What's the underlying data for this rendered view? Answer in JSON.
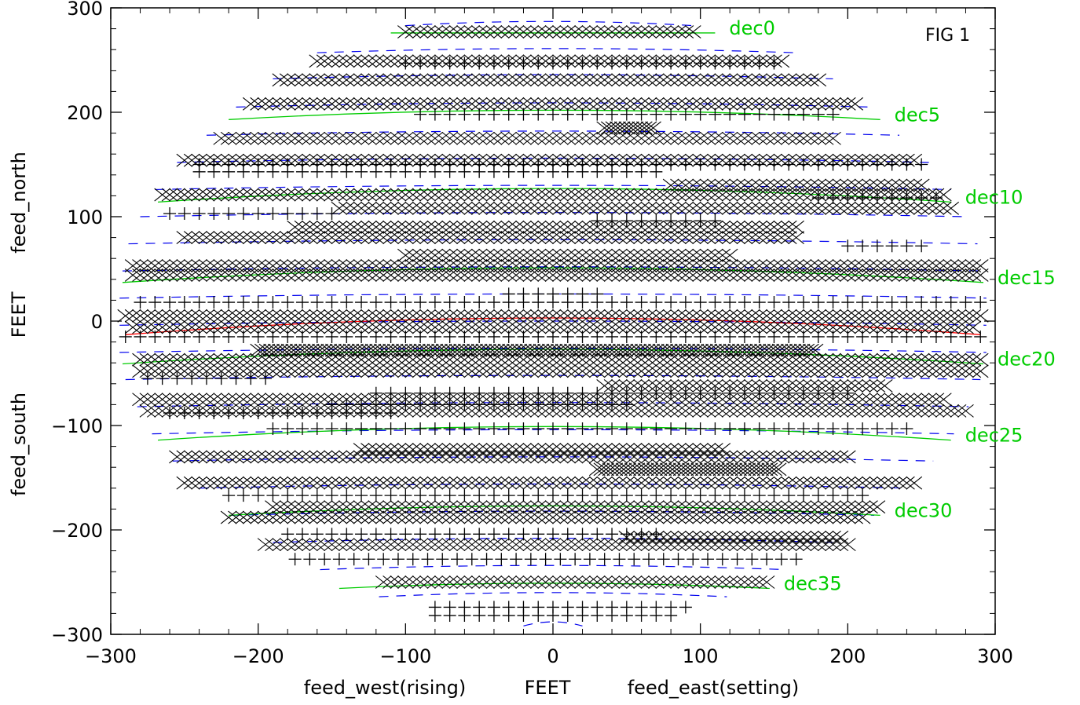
{
  "chart_data": {
    "type": "scatter",
    "figure_label": "FIG   1",
    "xlim": [
      -300,
      300
    ],
    "ylim": [
      -300,
      300
    ],
    "x_ticks": [
      -300,
      -200,
      -100,
      0,
      100,
      200,
      300
    ],
    "x_tick_labels": [
      "−300",
      "−200",
      "−100",
      "0",
      "100",
      "200",
      "300"
    ],
    "y_ticks": [
      -300,
      -200,
      -100,
      0,
      100,
      200,
      300
    ],
    "y_tick_labels": [
      "−300",
      "−200",
      "−100",
      "0",
      "100",
      "200",
      "300"
    ],
    "xlabel_parts": [
      "feed_west(rising)",
      "FEET",
      "feed_east(setting)"
    ],
    "ylabel_parts": [
      "feed_south",
      "FEET",
      "feed_north"
    ],
    "colors": {
      "markers": "#000000",
      "dec_curve": "#00cc00",
      "zenith_curve": "#ff0000",
      "track_dash": "#0000ee"
    },
    "dec_curves": [
      {
        "label": "dec0",
        "x0": -110,
        "x1": 110,
        "y0": 276,
        "sag": 0
      },
      {
        "label": "dec5",
        "x0": -220,
        "x1": 222,
        "y0": 193,
        "sag": 9
      },
      {
        "label": "dec10",
        "x0": -268,
        "x1": 270,
        "y0": 114,
        "sag": 13
      },
      {
        "label": "dec15",
        "x0": -292,
        "x1": 292,
        "y0": 37,
        "sag": 14
      },
      {
        "label": "dec20",
        "x0": -292,
        "x1": 292,
        "y0": -41,
        "sag": 14
      },
      {
        "label": "dec25",
        "x0": -268,
        "x1": 270,
        "y0": -114,
        "sag": 13
      },
      {
        "label": "dec30",
        "x0": -220,
        "x1": 222,
        "y0": -186,
        "sag": 9
      },
      {
        "label": "dec35",
        "x0": -145,
        "x1": 147,
        "y0": -256,
        "sag": 5
      }
    ],
    "zenith_curve": {
      "x0": -290,
      "x1": 290,
      "y0": -13,
      "sag": 16
    },
    "track_dashes": [
      {
        "y": 283,
        "x0": -100,
        "x1": 95
      },
      {
        "y": 257,
        "x0": -160,
        "x1": 165
      },
      {
        "y": 232,
        "x0": -190,
        "x1": 190
      },
      {
        "y": 205,
        "x0": -215,
        "x1": 215
      },
      {
        "y": 178,
        "x0": -235,
        "x1": 235
      },
      {
        "y": 152,
        "x0": -255,
        "x1": 255
      },
      {
        "y": 126,
        "x0": -270,
        "x1": 270
      },
      {
        "y": 100,
        "x0": -280,
        "x1": 280
      },
      {
        "y": 74,
        "x0": -288,
        "x1": 288
      },
      {
        "y": 48,
        "x0": -292,
        "x1": 292
      },
      {
        "y": 22,
        "x0": -294,
        "x1": 294
      },
      {
        "y": -4,
        "x0": -294,
        "x1": 294
      },
      {
        "y": -30,
        "x0": -294,
        "x1": 294
      },
      {
        "y": -56,
        "x0": -290,
        "x1": 290
      },
      {
        "y": -82,
        "x0": -282,
        "x1": 282
      },
      {
        "y": -108,
        "x0": -272,
        "x1": 272
      },
      {
        "y": -134,
        "x0": -258,
        "x1": 258
      },
      {
        "y": -160,
        "x0": -240,
        "x1": 240
      },
      {
        "y": -186,
        "x0": -218,
        "x1": 218
      },
      {
        "y": -212,
        "x0": -190,
        "x1": 190
      },
      {
        "y": -238,
        "x0": -158,
        "x1": 158
      },
      {
        "y": -264,
        "x0": -118,
        "x1": 118
      },
      {
        "y": -292,
        "x0": -20,
        "x1": 20
      }
    ],
    "x_tracks": [
      {
        "y": 277,
        "x0": -100,
        "x1": 95,
        "step": 5
      },
      {
        "y": 249,
        "x0": -160,
        "x1": 155,
        "step": 5
      },
      {
        "y": 231,
        "x0": -185,
        "x1": 180,
        "step": 5
      },
      {
        "y": 208,
        "x0": -205,
        "x1": 205,
        "step": 5
      },
      {
        "y": 185,
        "x0": 35,
        "x1": 70,
        "step": 3
      },
      {
        "y": 175,
        "x0": -225,
        "x1": 190,
        "step": 5
      },
      {
        "y": 154,
        "x0": -250,
        "x1": 245,
        "step": 5
      },
      {
        "y": 130,
        "x0": 80,
        "x1": 250,
        "step": 5
      },
      {
        "y": 121,
        "x0": -265,
        "x1": 265,
        "step": 5
      },
      {
        "y": 108,
        "x0": -145,
        "x1": 270,
        "step": 5
      },
      {
        "y": 90,
        "x0": -175,
        "x1": 165,
        "step": 5
      },
      {
        "y": 80,
        "x0": -250,
        "x1": 165,
        "step": 5
      },
      {
        "y": 63,
        "x0": -100,
        "x1": 120,
        "step": 5
      },
      {
        "y": 53,
        "x0": -285,
        "x1": 290,
        "step": 5
      },
      {
        "y": 44,
        "x0": -285,
        "x1": 290,
        "step": 5
      },
      {
        "y": 5,
        "x0": -290,
        "x1": 290,
        "step": 5
      },
      {
        "y": -6,
        "x0": -285,
        "x1": 285,
        "step": 5
      },
      {
        "y": -28,
        "x0": -200,
        "x1": 180,
        "step": 3
      },
      {
        "y": -37,
        "x0": -280,
        "x1": 290,
        "step": 5
      },
      {
        "y": -48,
        "x0": -280,
        "x1": 290,
        "step": 5
      },
      {
        "y": -62,
        "x0": 35,
        "x1": 225,
        "step": 5
      },
      {
        "y": -75,
        "x0": -280,
        "x1": 265,
        "step": 5
      },
      {
        "y": -86,
        "x0": -275,
        "x1": 280,
        "step": 5
      },
      {
        "y": -123,
        "x0": -130,
        "x1": 115,
        "step": 5
      },
      {
        "y": -130,
        "x0": -255,
        "x1": 200,
        "step": 5
      },
      {
        "y": -142,
        "x0": 30,
        "x1": 155,
        "step": 3
      },
      {
        "y": -155,
        "x0": -250,
        "x1": 245,
        "step": 5
      },
      {
        "y": -178,
        "x0": -190,
        "x1": 220,
        "step": 5
      },
      {
        "y": -188,
        "x0": -220,
        "x1": 210,
        "step": 5
      },
      {
        "y": -207,
        "x0": 50,
        "x1": 195,
        "step": 5
      },
      {
        "y": -214,
        "x0": -195,
        "x1": 200,
        "step": 5
      },
      {
        "y": -250,
        "x0": -115,
        "x1": 145,
        "step": 5
      }
    ],
    "plus_tracks": [
      {
        "y": 247,
        "x0": -100,
        "x1": 155,
        "step": 10
      },
      {
        "y": 198,
        "x0": -90,
        "x1": 190,
        "step": 10
      },
      {
        "y": 150,
        "x0": -240,
        "x1": 250,
        "step": 10
      },
      {
        "y": 143,
        "x0": -240,
        "x1": 75,
        "step": 10
      },
      {
        "y": 118,
        "x0": 180,
        "x1": 265,
        "step": 10
      },
      {
        "y": 103,
        "x0": -260,
        "x1": -150,
        "step": 10
      },
      {
        "y": 96,
        "x0": 30,
        "x1": 110,
        "step": 10
      },
      {
        "y": 72,
        "x0": 200,
        "x1": 250,
        "step": 10
      },
      {
        "y": 26,
        "x0": -30,
        "x1": 35,
        "step": 10
      },
      {
        "y": 18,
        "x0": -280,
        "x1": 290,
        "step": 10
      },
      {
        "y": -15,
        "x0": -290,
        "x1": 290,
        "step": 10
      },
      {
        "y": -55,
        "x0": -275,
        "x1": -190,
        "step": 10
      },
      {
        "y": -69,
        "x0": -120,
        "x1": 200,
        "step": 10
      },
      {
        "y": -80,
        "x0": -150,
        "x1": 50,
        "step": 10
      },
      {
        "y": -88,
        "x0": -260,
        "x1": -110,
        "step": 10
      },
      {
        "y": -103,
        "x0": -190,
        "x1": 240,
        "step": 10
      },
      {
        "y": -167,
        "x0": -220,
        "x1": 210,
        "step": 10
      },
      {
        "y": -204,
        "x0": -180,
        "x1": 75,
        "step": 10
      },
      {
        "y": -228,
        "x0": -175,
        "x1": 165,
        "step": 10
      },
      {
        "y": -274,
        "x0": -80,
        "x1": 95,
        "step": 10
      },
      {
        "y": -282,
        "x0": -80,
        "x1": 85,
        "step": 10
      }
    ]
  }
}
